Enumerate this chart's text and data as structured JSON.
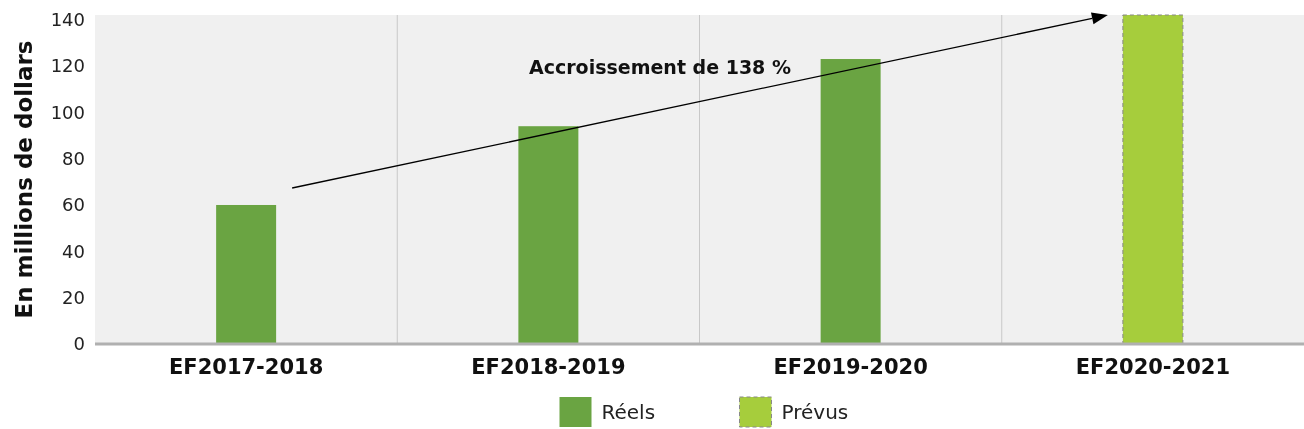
{
  "chart_data": {
    "type": "bar",
    "ylabel": "En millions de dollars",
    "categories": [
      "EF2017-2018",
      "EF2018-2019",
      "EF2019-2020",
      "EF2020-2021"
    ],
    "stacked": true,
    "series": [
      {
        "name": "Réels",
        "color": "#6aa442",
        "values": [
          60,
          94,
          123,
          null
        ]
      },
      {
        "name": "Prévus",
        "color": "#a6cd3c",
        "values": [
          null,
          null,
          null,
          142
        ],
        "line_style": "dashed"
      }
    ],
    "ylim": [
      0,
      142
    ],
    "yticks": [
      0,
      20,
      40,
      60,
      80,
      100,
      120,
      140
    ],
    "grid": "x",
    "legend": "bottom",
    "annotations": [
      "Accroissement de 138 %"
    ]
  }
}
